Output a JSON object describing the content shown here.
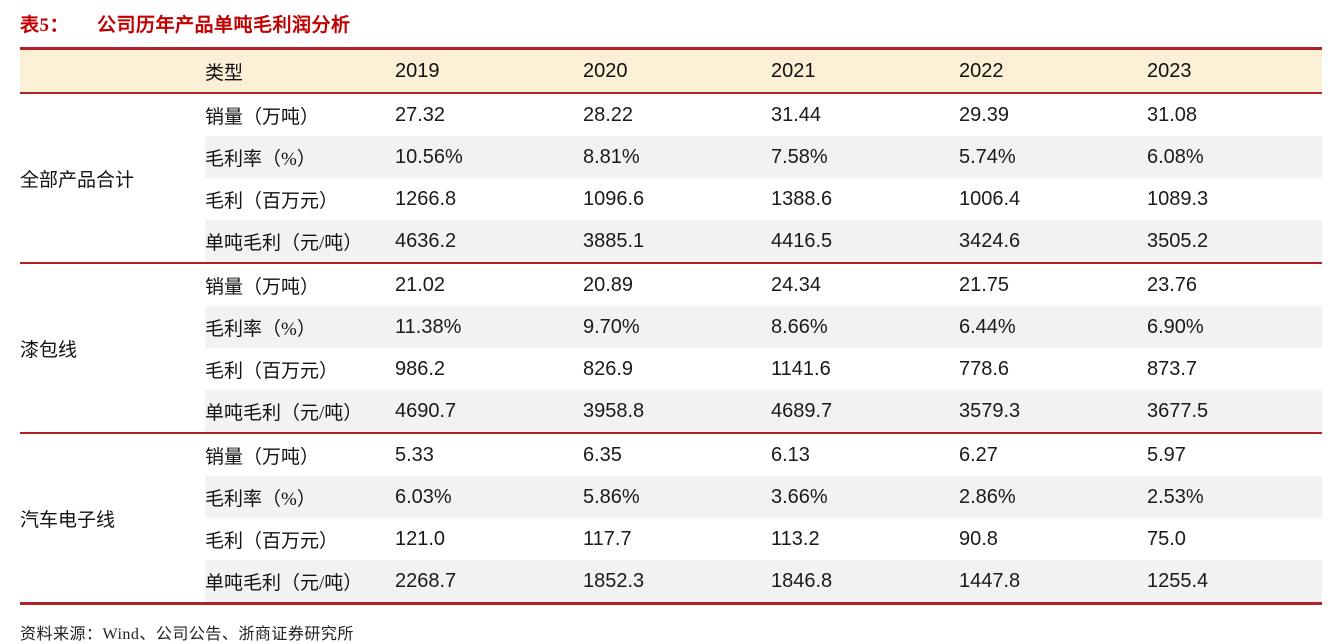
{
  "title": {
    "tag": "表5：",
    "text": "公司历年产品单吨毛利润分析"
  },
  "colors": {
    "accent_red": "#c00000",
    "rule_red": "#b42125",
    "header_band_bg": "#fbefd5",
    "stripe_bg": "#f2f2f2"
  },
  "table": {
    "type_header": "类型",
    "years": [
      "2019",
      "2020",
      "2021",
      "2022",
      "2023"
    ],
    "groups": [
      {
        "name": "全部产品合计",
        "rows": [
          {
            "label": "销量（万吨）",
            "values": [
              "27.32",
              "28.22",
              "31.44",
              "29.39",
              "31.08"
            ]
          },
          {
            "label": "毛利率（%）",
            "values": [
              "10.56%",
              "8.81%",
              "7.58%",
              "5.74%",
              "6.08%"
            ]
          },
          {
            "label": "毛利（百万元）",
            "values": [
              "1266.8",
              "1096.6",
              "1388.6",
              "1006.4",
              "1089.3"
            ]
          },
          {
            "label": "单吨毛利（元/吨）",
            "values": [
              "4636.2",
              "3885.1",
              "4416.5",
              "3424.6",
              "3505.2"
            ]
          }
        ]
      },
      {
        "name": "漆包线",
        "rows": [
          {
            "label": "销量（万吨）",
            "values": [
              "21.02",
              "20.89",
              "24.34",
              "21.75",
              "23.76"
            ]
          },
          {
            "label": "毛利率（%）",
            "values": [
              "11.38%",
              "9.70%",
              "8.66%",
              "6.44%",
              "6.90%"
            ]
          },
          {
            "label": "毛利（百万元）",
            "values": [
              "986.2",
              "826.9",
              "1141.6",
              "778.6",
              "873.7"
            ]
          },
          {
            "label": "单吨毛利（元/吨）",
            "values": [
              "4690.7",
              "3958.8",
              "4689.7",
              "3579.3",
              "3677.5"
            ]
          }
        ]
      },
      {
        "name": "汽车电子线",
        "rows": [
          {
            "label": "销量（万吨）",
            "values": [
              "5.33",
              "6.35",
              "6.13",
              "6.27",
              "5.97"
            ]
          },
          {
            "label": "毛利率（%）",
            "values": [
              "6.03%",
              "5.86%",
              "3.66%",
              "2.86%",
              "2.53%"
            ]
          },
          {
            "label": "毛利（百万元）",
            "values": [
              "121.0",
              "117.7",
              "113.2",
              "90.8",
              "75.0"
            ]
          },
          {
            "label": "单吨毛利（元/吨）",
            "values": [
              "2268.7",
              "1852.3",
              "1846.8",
              "1447.8",
              "1255.4"
            ]
          }
        ]
      }
    ]
  },
  "footer": {
    "source": "资料来源：Wind、公司公告、浙商证券研究所"
  },
  "chart_data": {
    "type": "table",
    "title": "表5：公司历年产品单吨毛利润分析",
    "columns": [
      "类型",
      "2019",
      "2020",
      "2021",
      "2022",
      "2023"
    ],
    "row_groups": [
      {
        "group": "全部产品合计",
        "rows": [
          [
            "销量（万吨）",
            27.32,
            28.22,
            31.44,
            29.39,
            31.08
          ],
          [
            "毛利率（%）",
            "10.56%",
            "8.81%",
            "7.58%",
            "5.74%",
            "6.08%"
          ],
          [
            "毛利（百万元）",
            1266.8,
            1096.6,
            1388.6,
            1006.4,
            1089.3
          ],
          [
            "单吨毛利（元/吨）",
            4636.2,
            3885.1,
            4416.5,
            3424.6,
            3505.2
          ]
        ]
      },
      {
        "group": "漆包线",
        "rows": [
          [
            "销量（万吨）",
            21.02,
            20.89,
            24.34,
            21.75,
            23.76
          ],
          [
            "毛利率（%）",
            "11.38%",
            "9.70%",
            "8.66%",
            "6.44%",
            "6.90%"
          ],
          [
            "毛利（百万元）",
            986.2,
            826.9,
            1141.6,
            778.6,
            873.7
          ],
          [
            "单吨毛利（元/吨）",
            4690.7,
            3958.8,
            4689.7,
            3579.3,
            3677.5
          ]
        ]
      },
      {
        "group": "汽车电子线",
        "rows": [
          [
            "销量（万吨）",
            5.33,
            6.35,
            6.13,
            6.27,
            5.97
          ],
          [
            "毛利率（%）",
            "6.03%",
            "5.86%",
            "3.66%",
            "2.86%",
            "2.53%"
          ],
          [
            "毛利（百万元）",
            121.0,
            117.7,
            113.2,
            90.8,
            75.0
          ],
          [
            "单吨毛利（元/吨）",
            2268.7,
            1852.3,
            1846.8,
            1447.8,
            1255.4
          ]
        ]
      }
    ],
    "source": "资料来源：Wind、公司公告、浙商证券研究所"
  }
}
